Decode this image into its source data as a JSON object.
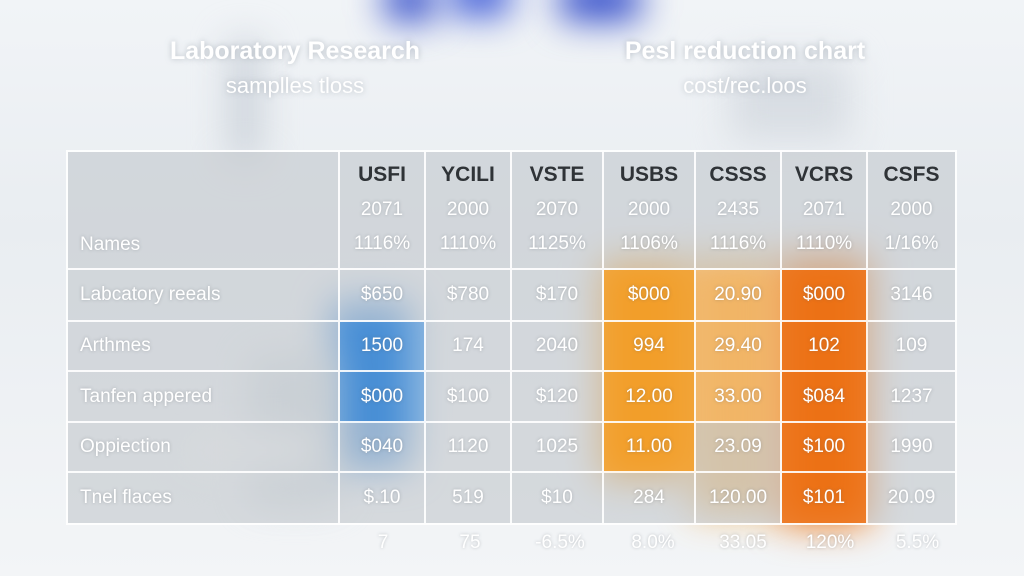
{
  "left_title": {
    "main": "Laboratory Research",
    "sub": "samplles tloss"
  },
  "right_title": {
    "main": "Pesl reduction chart",
    "sub": "cost/rec.loos"
  },
  "table": {
    "row_header_label": "Names",
    "columns": [
      {
        "code": "USFI",
        "year": "2071",
        "pct": "1116%"
      },
      {
        "code": "YCILI",
        "year": "2000",
        "pct": "1110%"
      },
      {
        "code": "VSTE",
        "year": "2070",
        "pct": "1125%"
      },
      {
        "code": "USBS",
        "year": "2000",
        "pct": "1106%"
      },
      {
        "code": "CSSS",
        "year": "2435",
        "pct": "1116%"
      },
      {
        "code": "VCRS",
        "year": "2071",
        "pct": "1110%"
      },
      {
        "code": "CSFS",
        "year": "2000",
        "pct": "1/16%"
      }
    ],
    "rows": [
      {
        "name": "Labcatory reeals",
        "values": [
          "$650",
          "$780",
          "$170",
          "$000",
          "20.90",
          "$000",
          "3146"
        ]
      },
      {
        "name": "Arthmes",
        "values": [
          "1500",
          "174",
          "2040",
          "994",
          "29.40",
          "102",
          "109"
        ]
      },
      {
        "name": "Tanfen appered",
        "values": [
          "$000",
          "$100",
          "$120",
          "12.00",
          "33.00",
          "$084",
          "1237"
        ]
      },
      {
        "name": "Oppiection",
        "values": [
          "$040",
          "1120",
          "1025",
          "11.00",
          "23.09",
          "$100",
          "1990"
        ]
      },
      {
        "name": "Tnel flaces",
        "values": [
          "$.10",
          "519",
          "$10",
          "284",
          "120.00",
          "$101",
          "20.09"
        ]
      }
    ],
    "footer": [
      "7",
      "75",
      "-6.5%",
      "8.0%",
      "33.05",
      "120%",
      "5.5%"
    ]
  },
  "colors": {
    "orange": "#f29e28",
    "dark_orange": "#ec7014",
    "blue": "#468cd2",
    "header_text": "#2f3337"
  }
}
